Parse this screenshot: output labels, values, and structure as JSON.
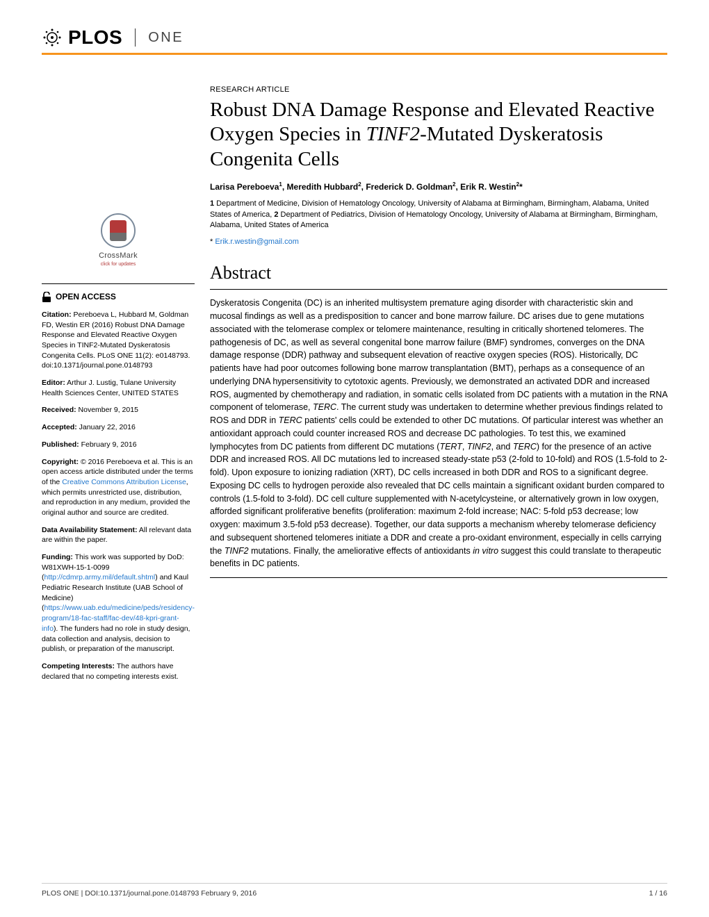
{
  "journal": {
    "publisher": "PLOS",
    "name": "ONE",
    "accent_color": "#f7941e"
  },
  "crossmark": {
    "label": "CrossMark",
    "sub": "click for updates"
  },
  "sidebar": {
    "open_access": "OPEN ACCESS",
    "citation_label": "Citation:",
    "citation": " Pereboeva L, Hubbard M, Goldman FD, Westin ER (2016) Robust DNA Damage Response and Elevated Reactive Oxygen Species in TINF2-Mutated Dyskeratosis Congenita Cells. PLoS ONE 11(2): e0148793. doi:10.1371/journal.pone.0148793",
    "editor_label": "Editor:",
    "editor": " Arthur J. Lustig, Tulane University Health Sciences Center, UNITED STATES",
    "received_label": "Received:",
    "received": " November 9, 2015",
    "accepted_label": "Accepted:",
    "accepted": " January 22, 2016",
    "published_label": "Published:",
    "published": " February 9, 2016",
    "copyright_label": "Copyright:",
    "copyright_pre": " © 2016 Pereboeva et al. This is an open access article distributed under the terms of the ",
    "cc_link": "Creative Commons Attribution License",
    "copyright_post": ", which permits unrestricted use, distribution, and reproduction in any medium, provided the original author and source are credited.",
    "data_label": "Data Availability Statement:",
    "data": " All relevant data are within the paper.",
    "funding_label": "Funding:",
    "funding_pre": " This work was supported by DoD: W81XWH-15-1-0099 (",
    "funding_link1": "http://cdmrp.army.mil/default.shtml",
    "funding_mid": ") and Kaul Pediatric Research Institute (UAB School of Medicine) (",
    "funding_link2": "https://www.uab.edu/medicine/peds/residency-program/18-fac-staff/fac-dev/48-kpri-grant-info",
    "funding_post": "). The funders had no role in study design, data collection and analysis, decision to publish, or preparation of the manuscript.",
    "competing_label": "Competing Interests:",
    "competing": " The authors have declared that no competing interests exist."
  },
  "article": {
    "type": "RESEARCH ARTICLE",
    "title_html": "Robust DNA Damage Response and Elevated Reactive Oxygen Species in <em>TINF2</em>-Mutated Dyskeratosis Congenita Cells",
    "authors_html": "Larisa Pereboeva<sup>1</sup>, Meredith Hubbard<sup>2</sup>, Frederick D. Goldman<sup>2</sup>, Erik R. Westin<sup>2</sup>*",
    "affiliations_html": "<b>1</b> Department of Medicine, Division of Hematology Oncology, University of Alabama at Birmingham, Birmingham, Alabama, United States of America, <b>2</b> Department of Pediatrics, Division of Hematology Oncology, University of Alabama at Birmingham, Birmingham, Alabama, United States of America",
    "corr_symbol": "* ",
    "corr_email": "Erik.r.westin@gmail.com",
    "abstract_heading": "Abstract",
    "abstract_html": "Dyskeratosis Congenita (DC) is an inherited multisystem premature aging disorder with characteristic skin and mucosal findings as well as a predisposition to cancer and bone marrow failure. DC arises due to gene mutations associated with the telomerase complex or telomere maintenance, resulting in critically shortened telomeres. The pathogenesis of DC, as well as several congenital bone marrow failure (BMF) syndromes, converges on the DNA damage response (DDR) pathway and subsequent elevation of reactive oxygen species (ROS). Historically, DC patients have had poor outcomes following bone marrow transplantation (BMT), perhaps as a consequence of an underlying DNA hypersensitivity to cytotoxic agents. Previously, we demonstrated an activated DDR and increased ROS, augmented by chemotherapy and radiation, in somatic cells isolated from DC patients with a mutation in the RNA component of telomerase, <em>TERC</em>. The current study was undertaken to determine whether previous findings related to ROS and DDR in <em>TERC</em> patients' cells could be extended to other DC mutations. Of particular interest was whether an antioxidant approach could counter increased ROS and decrease DC pathologies. To test this, we examined lymphocytes from DC patients from different DC mutations (<em>TERT</em>, <em>TINF2</em>, and <em>TERC</em>) for the presence of an active DDR and increased ROS. All DC mutations led to increased steady-state p53 (2-fold to 10-fold) and ROS (1.5-fold to 2-fold). Upon exposure to ionizing radiation (XRT), DC cells increased in both DDR and ROS to a significant degree. Exposing DC cells to hydrogen peroxide also revealed that DC cells maintain a significant oxidant burden compared to controls (1.5-fold to 3-fold). DC cell culture supplemented with N-acetylcysteine, or alternatively grown in low oxygen, afforded significant proliferative benefits (proliferation: maximum 2-fold increase; NAC: 5-fold p53 decrease; low oxygen: maximum 3.5-fold p53 decrease). Together, our data supports a mechanism whereby telomerase deficiency and subsequent shortened telomeres initiate a DDR and create a pro-oxidant environment, especially in cells carrying the <em>TINF2</em> mutations. Finally, the ameliorative effects of antioxidants <em>in vitro</em> suggest this could translate to therapeutic benefits in DC patients."
  },
  "footer": {
    "left": "PLOS ONE | DOI:10.1371/journal.pone.0148793   February 9, 2016",
    "right": "1 / 16"
  }
}
